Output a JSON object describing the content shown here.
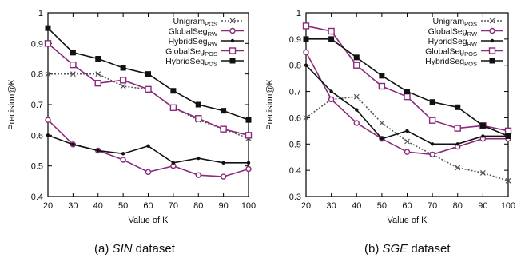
{
  "chart_data": [
    {
      "type": "line",
      "xlabel": "Value of K",
      "ylabel": "Precision@K",
      "x": [
        20,
        30,
        40,
        50,
        60,
        70,
        80,
        90,
        100
      ],
      "xlim": [
        20,
        100
      ],
      "ylim": [
        0.4,
        1.0
      ],
      "y_ticks": [
        "0.4",
        "0.5",
        "0.6",
        "0.7",
        "0.8",
        "0.9",
        "1"
      ],
      "grid": false,
      "legend_position": "top-right",
      "caption": {
        "prefix": "(a) ",
        "name": "SIN",
        "suffix": " dataset"
      },
      "series": [
        {
          "name": "Unigram",
          "subscript": "POS",
          "values": [
            0.8,
            0.8,
            0.8,
            0.76,
            0.75,
            0.69,
            0.65,
            0.62,
            0.59
          ]
        },
        {
          "name": "GlobalSeg",
          "subscript": "RW",
          "values": [
            0.65,
            0.57,
            0.55,
            0.52,
            0.48,
            0.5,
            0.47,
            0.465,
            0.49
          ]
        },
        {
          "name": "HybridSeg",
          "subscript": "RW",
          "values": [
            0.6,
            0.57,
            0.55,
            0.54,
            0.565,
            0.51,
            0.525,
            0.51,
            0.51
          ]
        },
        {
          "name": "GlobalSeg",
          "subscript": "POS",
          "values": [
            0.9,
            0.83,
            0.77,
            0.78,
            0.75,
            0.69,
            0.655,
            0.62,
            0.6
          ]
        },
        {
          "name": "HybridSeg",
          "subscript": "POS",
          "values": [
            0.95,
            0.87,
            0.85,
            0.82,
            0.8,
            0.745,
            0.7,
            0.68,
            0.65
          ]
        }
      ]
    },
    {
      "type": "line",
      "xlabel": "Value of K",
      "ylabel": "Precision@K",
      "x": [
        20,
        30,
        40,
        50,
        60,
        70,
        80,
        90,
        100
      ],
      "xlim": [
        20,
        100
      ],
      "ylim": [
        0.3,
        1.0
      ],
      "y_ticks": [
        "0.3",
        "0.4",
        "0.5",
        "0.6",
        "0.7",
        "0.8",
        "0.9",
        "1"
      ],
      "grid": false,
      "legend_position": "top-right",
      "caption": {
        "prefix": "(b) ",
        "name": "SGE",
        "suffix": " dataset"
      },
      "series": [
        {
          "name": "Unigram",
          "subscript": "POS",
          "values": [
            0.6,
            0.67,
            0.68,
            0.58,
            0.51,
            0.46,
            0.41,
            0.39,
            0.36
          ]
        },
        {
          "name": "GlobalSeg",
          "subscript": "RW",
          "values": [
            0.85,
            0.67,
            0.58,
            0.52,
            0.47,
            0.46,
            0.49,
            0.52,
            0.52
          ]
        },
        {
          "name": "HybridSeg",
          "subscript": "RW",
          "values": [
            0.8,
            0.7,
            0.63,
            0.52,
            0.55,
            0.5,
            0.5,
            0.53,
            0.53
          ]
        },
        {
          "name": "GlobalSeg",
          "subscript": "POS",
          "values": [
            0.95,
            0.93,
            0.8,
            0.72,
            0.68,
            0.59,
            0.56,
            0.57,
            0.55
          ]
        },
        {
          "name": "HybridSeg",
          "subscript": "POS",
          "values": [
            0.9,
            0.9,
            0.83,
            0.76,
            0.7,
            0.66,
            0.64,
            0.57,
            0.53
          ]
        }
      ]
    }
  ],
  "series_styles": [
    {
      "color": "#555555",
      "marker": "x",
      "dash": "2,2"
    },
    {
      "color": "#8a2a7a",
      "marker": "circle",
      "dash": ""
    },
    {
      "color": "#111111",
      "marker": "dot",
      "dash": ""
    },
    {
      "color": "#8a2a7a",
      "marker": "square-open",
      "dash": ""
    },
    {
      "color": "#111111",
      "marker": "square-filled",
      "dash": ""
    }
  ]
}
